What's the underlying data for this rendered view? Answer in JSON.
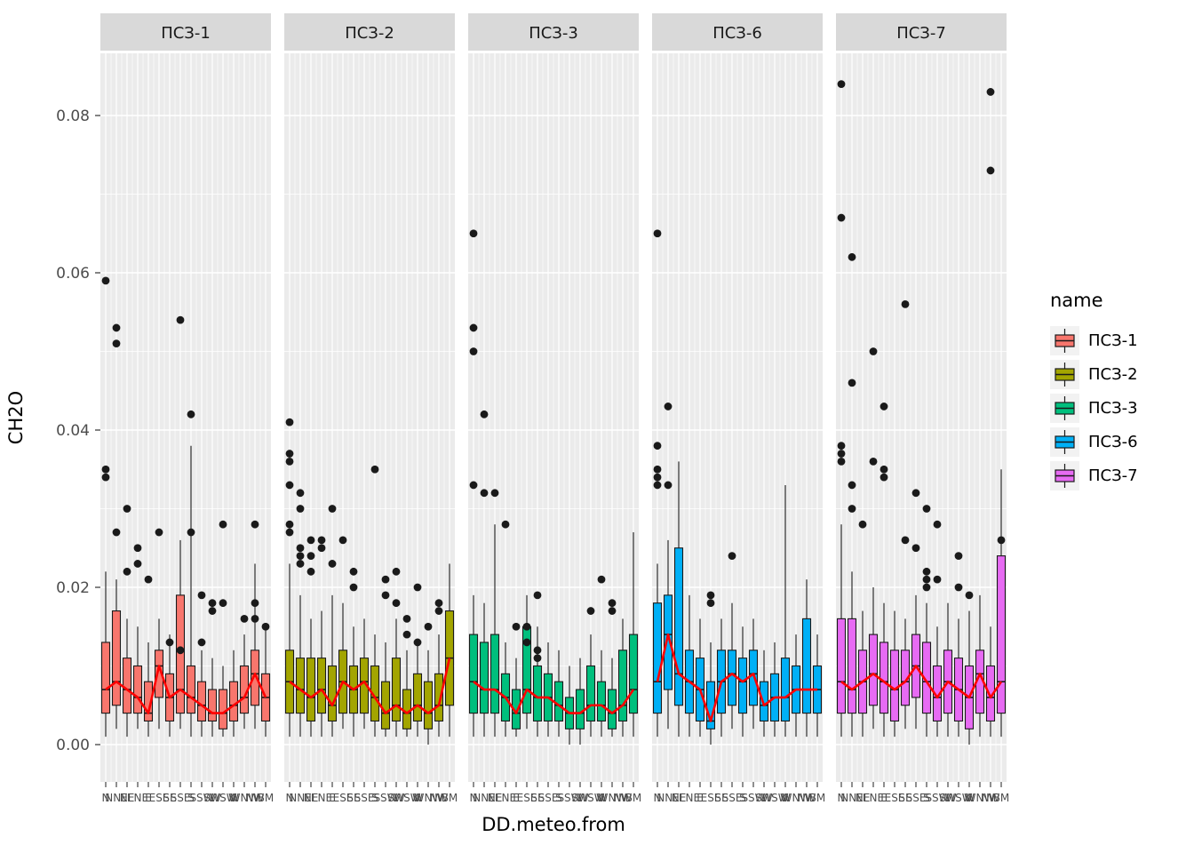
{
  "axes": {
    "x_title": "DD.meteo.from",
    "y_title": "CH2O",
    "y_ticks": [
      "0.00",
      "0.02",
      "0.04",
      "0.06",
      "0.08"
    ],
    "y_tick_values": [
      0,
      0.02,
      0.04,
      0.06,
      0.08
    ],
    "y_minor_values": [
      0.01,
      0.03,
      0.05,
      0.07
    ]
  },
  "legend": {
    "title": "name",
    "items": [
      {
        "label": "ПСЗ-1",
        "color": "#F8766D"
      },
      {
        "label": "ПСЗ-2",
        "color": "#A3A500"
      },
      {
        "label": "ПСЗ-3",
        "color": "#00BF7D"
      },
      {
        "label": "ПСЗ-6",
        "color": "#00B0F6"
      },
      {
        "label": "ПСЗ-7",
        "color": "#E76BF3"
      }
    ]
  },
  "panel": {
    "bg": "#EBEBEB",
    "grid": "#FFFFFF",
    "strip_bg": "#D9D9D9",
    "outline": "#1a1a1a",
    "tick_label_color": "#4D4D4D",
    "mean_line_color": "#FF0000"
  },
  "chart_data": {
    "type": "boxplot",
    "title": "",
    "xlabel": "DD.meteo.from",
    "ylabel": "CH2O",
    "ylim": [
      0,
      0.088
    ],
    "facet_variable": "name",
    "legend_position": "right",
    "grid": true,
    "categories": [
      "N",
      "NNE",
      "NE",
      "ENE",
      "E",
      "ESE",
      "SE",
      "SSE",
      "S",
      "SSW",
      "SW",
      "WSW",
      "W",
      "WNW",
      "NW",
      "BM"
    ],
    "box_format": "[low_whisker, q1, median, q3, high_whisker, [outliers]]",
    "facets": [
      {
        "label": "ПСЗ-1",
        "color": "#F8766D",
        "boxes": [
          [
            0.001,
            0.004,
            0.007,
            0.013,
            0.022,
            [
              0.059,
              0.035,
              0.034
            ]
          ],
          [
            0.002,
            0.005,
            0.008,
            0.017,
            0.021,
            [
              0.053,
              0.051,
              0.027
            ]
          ],
          [
            0.001,
            0.004,
            0.007,
            0.011,
            0.016,
            [
              0.03,
              0.022
            ]
          ],
          [
            0.002,
            0.004,
            0.006,
            0.01,
            0.015,
            [
              0.025,
              0.023
            ]
          ],
          [
            0.001,
            0.003,
            0.004,
            0.008,
            0.013,
            [
              0.021
            ]
          ],
          [
            0.002,
            0.006,
            0.01,
            0.012,
            0.016,
            [
              0.027
            ]
          ],
          [
            0.001,
            0.003,
            0.006,
            0.009,
            0.014,
            [
              0.013
            ]
          ],
          [
            0.002,
            0.004,
            0.007,
            0.019,
            0.026,
            [
              0.054,
              0.012
            ]
          ],
          [
            0.001,
            0.004,
            0.006,
            0.01,
            0.038,
            [
              0.042,
              0.027
            ]
          ],
          [
            0.001,
            0.003,
            0.005,
            0.008,
            0.012,
            [
              0.019,
              0.013
            ]
          ],
          [
            0.001,
            0.003,
            0.004,
            0.007,
            0.011,
            [
              0.018,
              0.017
            ]
          ],
          [
            0.001,
            0.002,
            0.004,
            0.007,
            0.01,
            [
              0.028,
              0.018
            ]
          ],
          [
            0.001,
            0.003,
            0.005,
            0.008,
            0.012,
            []
          ],
          [
            0.002,
            0.004,
            0.006,
            0.01,
            0.014,
            [
              0.016
            ]
          ],
          [
            0.002,
            0.005,
            0.009,
            0.012,
            0.023,
            [
              0.028,
              0.018,
              0.016
            ]
          ],
          [
            0.001,
            0.003,
            0.006,
            0.009,
            0.015,
            [
              0.015
            ]
          ]
        ]
      },
      {
        "label": "ПСЗ-2",
        "color": "#A3A500",
        "boxes": [
          [
            0.001,
            0.004,
            0.008,
            0.012,
            0.023,
            [
              0.041,
              0.037,
              0.036,
              0.033,
              0.028,
              0.027
            ]
          ],
          [
            0.001,
            0.004,
            0.007,
            0.011,
            0.019,
            [
              0.032,
              0.03,
              0.025,
              0.024,
              0.023
            ]
          ],
          [
            0.001,
            0.003,
            0.006,
            0.011,
            0.016,
            [
              0.026,
              0.024,
              0.022
            ]
          ],
          [
            0.001,
            0.004,
            0.007,
            0.011,
            0.017,
            [
              0.026,
              0.025
            ]
          ],
          [
            0.001,
            0.003,
            0.005,
            0.01,
            0.019,
            [
              0.03,
              0.023
            ]
          ],
          [
            0.002,
            0.004,
            0.008,
            0.012,
            0.018,
            [
              0.026
            ]
          ],
          [
            0.001,
            0.004,
            0.007,
            0.01,
            0.015,
            [
              0.022,
              0.02
            ]
          ],
          [
            0.002,
            0.004,
            0.008,
            0.011,
            0.016,
            []
          ],
          [
            0.001,
            0.003,
            0.006,
            0.01,
            0.014,
            [
              0.035
            ]
          ],
          [
            0.001,
            0.002,
            0.004,
            0.008,
            0.013,
            [
              0.021,
              0.019
            ]
          ],
          [
            0.001,
            0.003,
            0.005,
            0.011,
            0.016,
            [
              0.022,
              0.018
            ]
          ],
          [
            0.001,
            0.002,
            0.004,
            0.007,
            0.012,
            [
              0.016,
              0.014
            ]
          ],
          [
            0.001,
            0.003,
            0.005,
            0.009,
            0.013,
            [
              0.02,
              0.013
            ]
          ],
          [
            0.0,
            0.002,
            0.004,
            0.008,
            0.012,
            [
              0.015
            ]
          ],
          [
            0.001,
            0.003,
            0.005,
            0.009,
            0.014,
            [
              0.018,
              0.017
            ]
          ],
          [
            0.001,
            0.005,
            0.011,
            0.017,
            0.023,
            []
          ]
        ]
      },
      {
        "label": "ПСЗ-3",
        "color": "#00BF7D",
        "boxes": [
          [
            0.001,
            0.004,
            0.008,
            0.014,
            0.019,
            [
              0.065,
              0.053,
              0.05,
              0.033
            ]
          ],
          [
            0.001,
            0.004,
            0.007,
            0.013,
            0.018,
            [
              0.042,
              0.032
            ]
          ],
          [
            0.001,
            0.004,
            0.007,
            0.014,
            0.028,
            [
              0.032
            ]
          ],
          [
            0.001,
            0.003,
            0.006,
            0.009,
            0.013,
            [
              0.028
            ]
          ],
          [
            0.001,
            0.002,
            0.004,
            0.007,
            0.011,
            [
              0.015
            ]
          ],
          [
            0.002,
            0.004,
            0.007,
            0.015,
            0.019,
            [
              0.015,
              0.013
            ]
          ],
          [
            0.001,
            0.003,
            0.006,
            0.01,
            0.015,
            [
              0.019,
              0.012,
              0.011
            ]
          ],
          [
            0.001,
            0.003,
            0.006,
            0.009,
            0.013,
            []
          ],
          [
            0.001,
            0.003,
            0.005,
            0.008,
            0.012,
            []
          ],
          [
            0.0,
            0.002,
            0.004,
            0.006,
            0.01,
            []
          ],
          [
            0.0,
            0.002,
            0.004,
            0.007,
            0.011,
            []
          ],
          [
            0.001,
            0.003,
            0.005,
            0.01,
            0.014,
            [
              0.017
            ]
          ],
          [
            0.001,
            0.003,
            0.005,
            0.008,
            0.012,
            [
              0.021
            ]
          ],
          [
            0.001,
            0.002,
            0.004,
            0.007,
            0.011,
            [
              0.018,
              0.017
            ]
          ],
          [
            0.001,
            0.003,
            0.005,
            0.012,
            0.016,
            []
          ],
          [
            0.001,
            0.004,
            0.007,
            0.014,
            0.027,
            []
          ]
        ]
      },
      {
        "label": "ПСЗ-6",
        "color": "#00B0F6",
        "boxes": [
          [
            0.001,
            0.004,
            0.008,
            0.018,
            0.023,
            [
              0.065,
              0.038,
              0.035,
              0.034,
              0.033
            ]
          ],
          [
            0.002,
            0.007,
            0.014,
            0.019,
            0.026,
            [
              0.043,
              0.033
            ]
          ],
          [
            0.001,
            0.005,
            0.009,
            0.025,
            0.036,
            []
          ],
          [
            0.001,
            0.004,
            0.008,
            0.012,
            0.019,
            []
          ],
          [
            0.001,
            0.003,
            0.007,
            0.011,
            0.016,
            []
          ],
          [
            0.0,
            0.002,
            0.003,
            0.008,
            0.013,
            [
              0.019,
              0.018
            ]
          ],
          [
            0.001,
            0.004,
            0.008,
            0.012,
            0.016,
            []
          ],
          [
            0.002,
            0.005,
            0.009,
            0.012,
            0.018,
            [
              0.024
            ]
          ],
          [
            0.001,
            0.004,
            0.008,
            0.011,
            0.015,
            []
          ],
          [
            0.002,
            0.005,
            0.009,
            0.012,
            0.016,
            []
          ],
          [
            0.001,
            0.003,
            0.005,
            0.008,
            0.012,
            []
          ],
          [
            0.001,
            0.003,
            0.006,
            0.009,
            0.013,
            []
          ],
          [
            0.001,
            0.003,
            0.006,
            0.011,
            0.033,
            []
          ],
          [
            0.001,
            0.004,
            0.007,
            0.01,
            0.014,
            []
          ],
          [
            0.001,
            0.004,
            0.007,
            0.016,
            0.021,
            []
          ],
          [
            0.001,
            0.004,
            0.007,
            0.01,
            0.014,
            []
          ]
        ]
      },
      {
        "label": "ПСЗ-7",
        "color": "#E76BF3",
        "boxes": [
          [
            0.001,
            0.004,
            0.008,
            0.016,
            0.028,
            [
              0.084,
              0.067,
              0.038,
              0.037,
              0.036
            ]
          ],
          [
            0.001,
            0.004,
            0.007,
            0.016,
            0.022,
            [
              0.062,
              0.046,
              0.033,
              0.03
            ]
          ],
          [
            0.001,
            0.004,
            0.008,
            0.012,
            0.017,
            [
              0.028
            ]
          ],
          [
            0.002,
            0.005,
            0.009,
            0.014,
            0.02,
            [
              0.05,
              0.036
            ]
          ],
          [
            0.001,
            0.004,
            0.008,
            0.013,
            0.018,
            [
              0.043,
              0.035,
              0.034
            ]
          ],
          [
            0.001,
            0.003,
            0.007,
            0.012,
            0.017,
            []
          ],
          [
            0.002,
            0.005,
            0.008,
            0.012,
            0.016,
            [
              0.056,
              0.026
            ]
          ],
          [
            0.002,
            0.006,
            0.01,
            0.014,
            0.019,
            [
              0.032,
              0.025
            ]
          ],
          [
            0.001,
            0.004,
            0.008,
            0.013,
            0.018,
            [
              0.03,
              0.022,
              0.021,
              0.02
            ]
          ],
          [
            0.001,
            0.003,
            0.006,
            0.01,
            0.015,
            [
              0.028,
              0.021
            ]
          ],
          [
            0.001,
            0.004,
            0.008,
            0.012,
            0.018,
            []
          ],
          [
            0.001,
            0.003,
            0.007,
            0.011,
            0.016,
            [
              0.024,
              0.02
            ]
          ],
          [
            0.0,
            0.002,
            0.006,
            0.01,
            0.017,
            [
              0.019
            ]
          ],
          [
            0.001,
            0.004,
            0.009,
            0.012,
            0.019,
            []
          ],
          [
            0.001,
            0.003,
            0.006,
            0.01,
            0.015,
            [
              0.083,
              0.073
            ]
          ],
          [
            0.001,
            0.004,
            0.008,
            0.024,
            0.035,
            [
              0.026
            ]
          ]
        ]
      }
    ]
  }
}
